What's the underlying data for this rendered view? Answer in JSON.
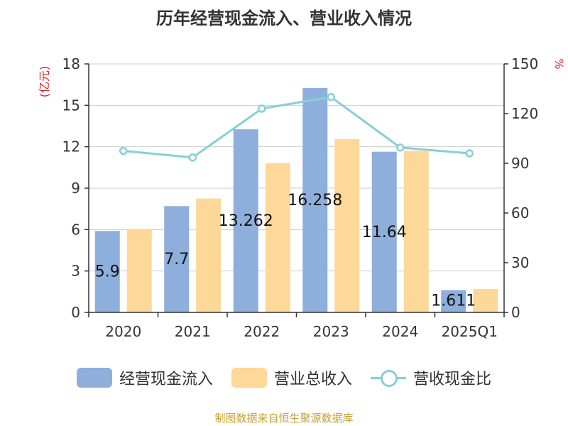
{
  "chart_data": {
    "type": "bar",
    "title": "历年经营现金流入、营业收入情况",
    "categories": [
      "2020",
      "2021",
      "2022",
      "2023",
      "2024",
      "2025Q1"
    ],
    "series": [
      {
        "name": "经营现金流入",
        "type": "bar",
        "axis": "left",
        "color": "#8eaedb",
        "values": [
          5.9,
          7.7,
          13.262,
          16.258,
          11.64,
          1.611
        ],
        "labels": [
          "5.9",
          "7.7",
          "13.262",
          "16.258",
          "11.64",
          "1.611"
        ]
      },
      {
        "name": "营业总收入",
        "type": "bar",
        "axis": "left",
        "color": "#fdd898",
        "values": [
          6.05,
          8.25,
          10.8,
          12.55,
          11.7,
          1.7
        ]
      },
      {
        "name": "营收现金比",
        "type": "line",
        "axis": "right",
        "color": "#86d0d6",
        "values": [
          97.5,
          93.5,
          123,
          130,
          99.5,
          96
        ]
      }
    ],
    "ylabel": "(亿元)",
    "y2label": "%",
    "ylim": [
      0,
      18
    ],
    "y2lim": [
      0,
      150
    ],
    "yticks": [
      "0",
      "3",
      "6",
      "9",
      "12",
      "15",
      "18"
    ],
    "y2ticks": [
      "0",
      "30",
      "60",
      "90",
      "120",
      "150"
    ],
    "grid": true,
    "legend_position": "bottom"
  },
  "source": "制图数据来自恒生聚源数据库"
}
